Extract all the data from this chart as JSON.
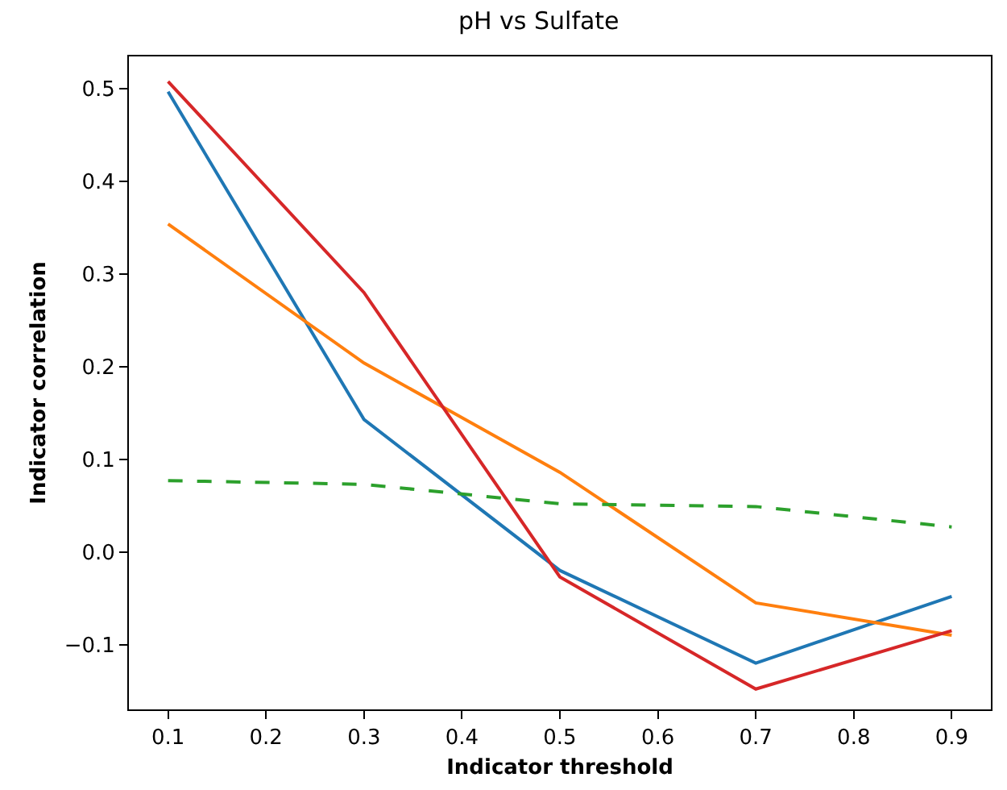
{
  "chart_data": {
    "type": "line",
    "title": "pH vs Sulfate",
    "xlabel": "Indicator threshold",
    "ylabel": "Indicator correlation",
    "x": [
      0.1,
      0.3,
      0.5,
      0.7,
      0.9
    ],
    "xlim": [
      0.06,
      0.94
    ],
    "xticks": [
      0.1,
      0.2,
      0.3,
      0.4,
      0.5,
      0.6,
      0.7,
      0.8,
      0.9
    ],
    "ylim": [
      -0.17,
      0.535
    ],
    "yticks": [
      {
        "value": -0.1,
        "label": "−0.1"
      },
      {
        "value": 0,
        "label": "0.0"
      },
      0.1,
      0.2,
      0.3,
      0.4,
      0.5
    ],
    "marker": "none",
    "series": [
      {
        "color": "#1f77b4",
        "line_style": "solid",
        "values": [
          0.497,
          0.143,
          -0.02,
          -0.12,
          -0.048
        ]
      },
      {
        "color": "#ff7f0e",
        "line_style": "solid",
        "values": [
          0.354,
          0.204,
          0.086,
          -0.055,
          -0.09
        ]
      },
      {
        "color": "#2ca02c",
        "line_style": "dashed",
        "values": [
          0.077,
          0.073,
          0.052,
          0.049,
          0.027
        ]
      },
      {
        "color": "#d62728",
        "line_style": "solid",
        "values": [
          0.508,
          0.28,
          -0.027,
          -0.148,
          -0.085
        ]
      }
    ]
  }
}
